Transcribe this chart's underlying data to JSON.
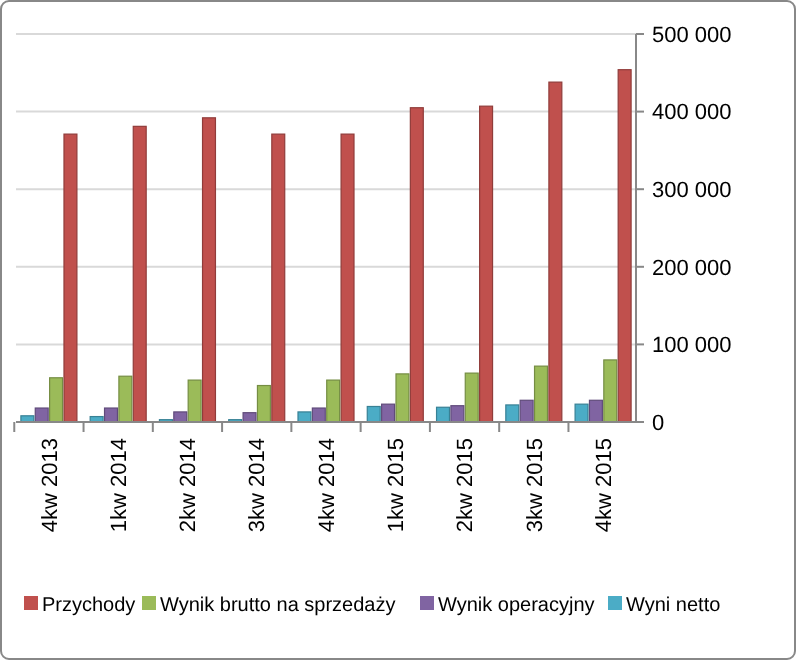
{
  "chart_data": {
    "type": "bar",
    "categories": [
      "4kw 2013",
      "1kw 2014",
      "2kw 2014",
      "3kw 2014",
      "4kw 2014",
      "1kw 2015",
      "2kw 2015",
      "3kw 2015",
      "4kw 2015"
    ],
    "series": [
      {
        "name": "Przychody",
        "color": "#c0504d",
        "values": [
          371000,
          381000,
          392000,
          371000,
          371000,
          405000,
          407000,
          438000,
          454000
        ]
      },
      {
        "name": "Wynik brutto na sprzedaży",
        "color": "#9bbb59",
        "values": [
          57000,
          59000,
          54000,
          47000,
          54000,
          62000,
          63000,
          72000,
          80000
        ]
      },
      {
        "name": "Wynik operacyjny",
        "color": "#8064a2",
        "values": [
          18000,
          18000,
          13000,
          12000,
          18000,
          23000,
          21000,
          28000,
          28000
        ]
      },
      {
        "name": "Wyni netto",
        "color": "#4bacc6",
        "values": [
          8000,
          7000,
          3000,
          3000,
          13000,
          20000,
          19000,
          22000,
          23000
        ]
      }
    ],
    "ylim": [
      0,
      500000
    ],
    "yticks": [
      {
        "value": 0,
        "label": "0"
      },
      {
        "value": 100000,
        "label": "100 000"
      },
      {
        "value": 200000,
        "label": "200 000"
      },
      {
        "value": 300000,
        "label": "300 000"
      },
      {
        "value": 400000,
        "label": "400 000"
      },
      {
        "value": 500000,
        "label": "500 000"
      }
    ],
    "grid": "y",
    "legend": "bottom"
  }
}
